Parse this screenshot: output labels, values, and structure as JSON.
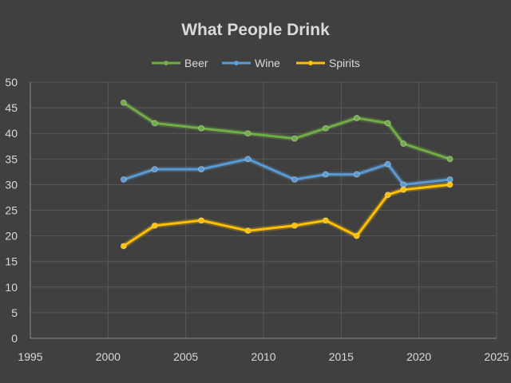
{
  "chart_data": {
    "type": "line",
    "title": "What People Drink",
    "xlabel": "",
    "ylabel": "",
    "xlim": [
      1995,
      2025
    ],
    "ylim": [
      0,
      50
    ],
    "x_ticks": [
      1995,
      2000,
      2005,
      2010,
      2015,
      2020,
      2025
    ],
    "y_ticks": [
      0,
      5,
      10,
      15,
      20,
      25,
      30,
      35,
      40,
      45,
      50
    ],
    "grid": true,
    "legend_position": "top",
    "series": [
      {
        "name": "Beer",
        "color": "#70ad47",
        "x": [
          2001,
          2003,
          2006,
          2009,
          2012,
          2014,
          2016,
          2018,
          2019,
          2022
        ],
        "y": [
          46,
          42,
          41,
          40,
          39,
          41,
          43,
          42,
          38,
          35
        ]
      },
      {
        "name": "Wine",
        "color": "#5b9bd5",
        "x": [
          2001,
          2003,
          2006,
          2009,
          2012,
          2014,
          2016,
          2018,
          2019,
          2022
        ],
        "y": [
          31,
          33,
          33,
          35,
          31,
          32,
          32,
          34,
          30,
          31
        ]
      },
      {
        "name": "Spirits",
        "color": "#ffc000",
        "x": [
          2001,
          2003,
          2006,
          2009,
          2012,
          2014,
          2016,
          2018,
          2019,
          2022
        ],
        "y": [
          18,
          22,
          23,
          21,
          22,
          23,
          20,
          28,
          29,
          30
        ]
      }
    ]
  }
}
